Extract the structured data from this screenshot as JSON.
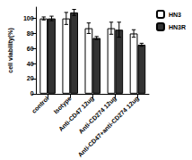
{
  "chart_data": {
    "type": "bar",
    "y_label": "cell viability(%)",
    "categories": [
      "control",
      "Isotype",
      "Anti-CD47 12ug",
      "Anti-CD274 12ug",
      "Anti-CD47+anti-CD274 12ug"
    ],
    "series": [
      {
        "name": "HN3",
        "color": "#ffffff",
        "values": [
          100,
          100,
          87,
          87,
          80
        ],
        "errors": [
          2,
          8,
          7,
          8,
          5
        ]
      },
      {
        "name": "HN3R",
        "color": "#333333",
        "values": [
          100,
          108,
          74,
          85,
          65
        ],
        "errors": [
          3,
          4,
          2,
          10,
          2
        ]
      }
    ],
    "ylim": [
      0,
      115
    ],
    "yticks": [
      0,
      20,
      40,
      60,
      80,
      100
    ],
    "legend": "upper right",
    "grid": false
  }
}
